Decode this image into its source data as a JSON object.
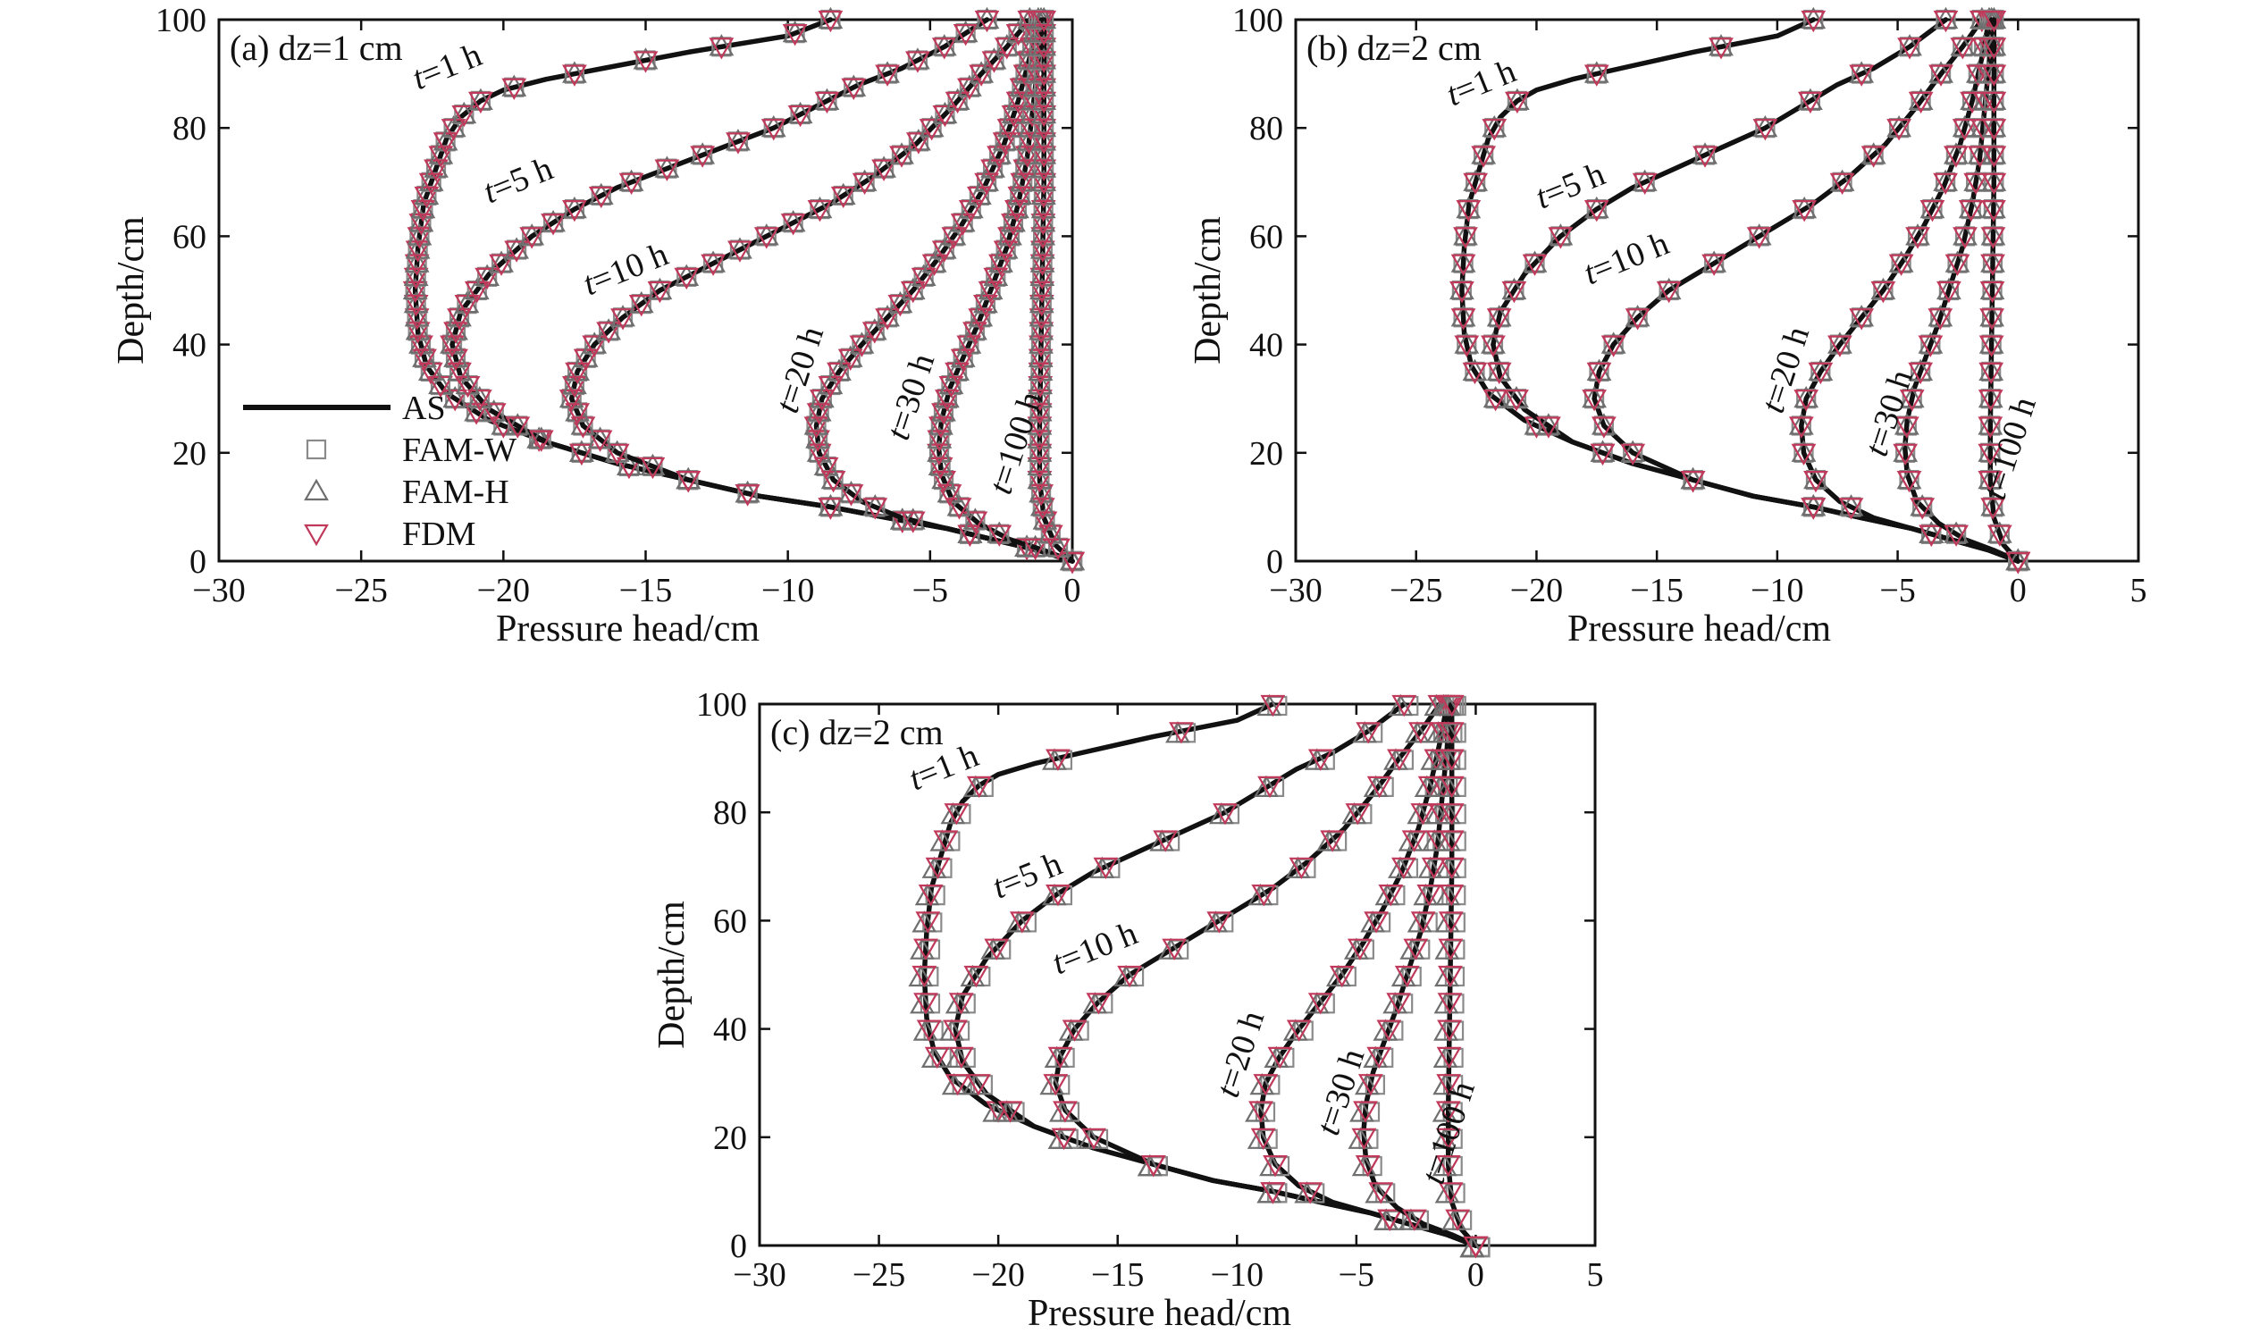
{
  "figure": {
    "legend": {
      "items": [
        {
          "label": "AS",
          "style": "line",
          "color": "#111111"
        },
        {
          "label": "FAM-W",
          "style": "square",
          "color": "#8a8a8a"
        },
        {
          "label": "FAM-H",
          "style": "triangle-up",
          "color": "#6e6e6e"
        },
        {
          "label": "FDM",
          "style": "triangle-down",
          "color": "#c0395a"
        }
      ],
      "placement": "lower-left of panel (a)"
    }
  },
  "chart_data": [
    {
      "type": "line",
      "panel_label": "(a) dz=1 cm",
      "xlabel": "Pressure head/cm",
      "ylabel": "Depth/cm",
      "xlim": [
        -30,
        0
      ],
      "ylim": [
        0,
        100
      ],
      "xticks": [
        "−30",
        "−25",
        "−20",
        "−15",
        "−10",
        "−5",
        "0"
      ],
      "yticks": [
        "0",
        "20",
        "40",
        "60",
        "80",
        "100"
      ],
      "grid": false,
      "series": [
        {
          "name": "t=1 h",
          "label_t": "t",
          "label_rest": "=1 h",
          "label_at": [
            -23,
            87
          ],
          "x": [
            0,
            -1.2,
            -2.8,
            -4.4,
            -6.5,
            -8.5,
            -11,
            -13.5,
            -16,
            -18.5,
            -20.5,
            -22,
            -22.7,
            -23,
            -23.1,
            -23,
            -22.8,
            -22.4,
            -22,
            -21.5,
            -20.8,
            -20,
            -18.5,
            -16.5,
            -13.5,
            -10,
            -8.5
          ],
          "y": [
            0,
            2,
            4,
            6,
            8,
            10,
            12,
            15,
            18,
            22,
            26,
            31,
            36,
            42,
            50,
            58,
            66,
            72,
            78,
            82,
            85,
            87,
            89,
            91,
            94,
            97,
            100
          ]
        },
        {
          "name": "t=5 h",
          "label_t": "t",
          "label_rest": "=5 h",
          "label_at": [
            -20.5,
            66
          ],
          "x": [
            0,
            -1.2,
            -2.8,
            -4.4,
            -6.5,
            -8.5,
            -11,
            -13.5,
            -16,
            -18.5,
            -20.5,
            -21.5,
            -21.8,
            -21.5,
            -20.5,
            -19,
            -17.5,
            -16,
            -14.5,
            -12.5,
            -10.5,
            -9,
            -7.5,
            -6,
            -4.5,
            -3
          ],
          "y": [
            0,
            2,
            4,
            6,
            8,
            10,
            12,
            15,
            18,
            22,
            28,
            34,
            40,
            46,
            53,
            60,
            65,
            69,
            72,
            76,
            80,
            84,
            88,
            91,
            95,
            100
          ]
        },
        {
          "name": "t=10 h",
          "label_t": "t",
          "label_rest": "=10 h",
          "label_at": [
            -17,
            49
          ],
          "x": [
            0,
            -1.2,
            -2.8,
            -4.4,
            -6.5,
            -8.5,
            -11,
            -13.5,
            -16,
            -17.2,
            -17.6,
            -17.4,
            -16.8,
            -15.8,
            -14.5,
            -13,
            -11.5,
            -10,
            -8.5,
            -7,
            -5.5,
            -4.2,
            -3.2,
            -2.3,
            -1.5
          ],
          "y": [
            0,
            2,
            4,
            6,
            8,
            10,
            12,
            15,
            20,
            25,
            30,
            35,
            40,
            45,
            50,
            54,
            58,
            62,
            66,
            71,
            77,
            84,
            90,
            95,
            100
          ]
        },
        {
          "name": "t=20 h",
          "label_t": "t",
          "label_rest": "=20 h",
          "label_at": [
            -9.7,
            27
          ],
          "x": [
            0,
            -1.2,
            -2.8,
            -4.4,
            -6,
            -7.4,
            -8.4,
            -8.9,
            -9,
            -8.8,
            -8.2,
            -7.4,
            -6.5,
            -5.6,
            -4.7,
            -3.9,
            -3.1,
            -2.4,
            -1.9,
            -1.5,
            -1.2
          ],
          "y": [
            0,
            2,
            4,
            6,
            8,
            11,
            15,
            20,
            25,
            30,
            35,
            40,
            45,
            50,
            56,
            62,
            69,
            77,
            85,
            93,
            100
          ]
        },
        {
          "name": "t=30 h",
          "label_t": "t",
          "label_rest": "=30 h",
          "label_at": [
            -5.8,
            22
          ],
          "x": [
            0,
            -1,
            -2.2,
            -3.3,
            -4.2,
            -4.6,
            -4.7,
            -4.6,
            -4.3,
            -3.8,
            -3.3,
            -2.8,
            -2.3,
            -1.9,
            -1.6,
            -1.4,
            -1.2,
            -1.1
          ],
          "y": [
            0,
            2,
            4,
            7,
            11,
            16,
            21,
            26,
            32,
            38,
            44,
            51,
            58,
            66,
            74,
            83,
            92,
            100
          ]
        },
        {
          "name": "t=100 h",
          "label_t": "t",
          "label_rest": "=100 h",
          "label_at": [
            -2.2,
            12
          ],
          "x": [
            0,
            -0.6,
            -1,
            -1.15,
            -1.15,
            -1.1,
            -1.05,
            -1,
            -1,
            -1
          ],
          "y": [
            0,
            3,
            8,
            15,
            25,
            40,
            55,
            70,
            85,
            100
          ]
        }
      ]
    },
    {
      "type": "line",
      "panel_label": "(b) dz=2 cm",
      "xlabel": "Pressure head/cm",
      "ylabel": "Depth/cm",
      "xlim": [
        -30,
        5
      ],
      "ylim": [
        0,
        100
      ],
      "xticks": [
        "−30",
        "−25",
        "−20",
        "−15",
        "−10",
        "−5",
        "0",
        "5"
      ],
      "yticks": [
        "0",
        "20",
        "40",
        "60",
        "80",
        "100"
      ],
      "grid": false,
      "series": [
        {
          "name": "t=1 h",
          "label_t": "t",
          "label_rest": "=1 h",
          "label_at": [
            -23.5,
            84
          ],
          "x": [
            0,
            -1.2,
            -2.8,
            -4.4,
            -6.5,
            -8.5,
            -11,
            -13.5,
            -16,
            -18.5,
            -20.5,
            -22,
            -22.7,
            -23,
            -23.1,
            -23,
            -22.8,
            -22.4,
            -22,
            -21.5,
            -20.8,
            -20,
            -18.5,
            -16.5,
            -13.5,
            -10,
            -8.5
          ],
          "y": [
            0,
            2,
            4,
            6,
            8,
            10,
            12,
            15,
            18,
            22,
            26,
            31,
            36,
            42,
            50,
            58,
            66,
            72,
            78,
            82,
            85,
            87,
            89,
            91,
            94,
            97,
            100
          ]
        },
        {
          "name": "t=5 h",
          "label_t": "t",
          "label_rest": "=5 h",
          "label_at": [
            -19.8,
            65
          ],
          "x": [
            0,
            -1.2,
            -2.8,
            -4.4,
            -6.5,
            -8.5,
            -11,
            -13.5,
            -16,
            -18.5,
            -20.5,
            -21.5,
            -21.8,
            -21.5,
            -20.5,
            -19,
            -17.5,
            -16,
            -14.5,
            -12.5,
            -10.5,
            -9,
            -7.5,
            -6,
            -4.5,
            -3
          ],
          "y": [
            0,
            2,
            4,
            6,
            8,
            10,
            12,
            15,
            18,
            22,
            28,
            34,
            40,
            46,
            53,
            60,
            65,
            69,
            72,
            76,
            80,
            84,
            88,
            91,
            95,
            100
          ]
        },
        {
          "name": "t=10 h",
          "label_t": "t",
          "label_rest": "=10 h",
          "label_at": [
            -17.8,
            51
          ],
          "x": [
            0,
            -1.2,
            -2.8,
            -4.4,
            -6.5,
            -8.5,
            -11,
            -13.5,
            -16,
            -17.2,
            -17.6,
            -17.4,
            -16.8,
            -15.8,
            -14.5,
            -13,
            -11.5,
            -10,
            -8.5,
            -7,
            -5.5,
            -4.2,
            -3.2,
            -2.3,
            -1.5
          ],
          "y": [
            0,
            2,
            4,
            6,
            8,
            10,
            12,
            15,
            20,
            25,
            30,
            35,
            40,
            45,
            50,
            54,
            58,
            62,
            66,
            71,
            77,
            84,
            90,
            95,
            100
          ]
        },
        {
          "name": "t=20 h",
          "label_t": "t",
          "label_rest": "=20 h",
          "label_at": [
            -9.8,
            27
          ],
          "x": [
            0,
            -1.2,
            -2.8,
            -4.4,
            -6,
            -7.4,
            -8.4,
            -8.9,
            -9,
            -8.8,
            -8.2,
            -7.4,
            -6.5,
            -5.6,
            -4.7,
            -3.9,
            -3.1,
            -2.4,
            -1.9,
            -1.5,
            -1.2
          ],
          "y": [
            0,
            2,
            4,
            6,
            8,
            11,
            15,
            20,
            25,
            30,
            35,
            40,
            45,
            50,
            56,
            62,
            69,
            77,
            85,
            93,
            100
          ]
        },
        {
          "name": "t=30 h",
          "label_t": "t",
          "label_rest": "=30 h",
          "label_at": [
            -5.5,
            19
          ],
          "x": [
            0,
            -1,
            -2.2,
            -3.3,
            -4.2,
            -4.6,
            -4.7,
            -4.6,
            -4.3,
            -3.8,
            -3.3,
            -2.8,
            -2.3,
            -1.9,
            -1.6,
            -1.4,
            -1.2,
            -1.1
          ],
          "y": [
            0,
            2,
            4,
            7,
            11,
            16,
            21,
            26,
            32,
            38,
            44,
            51,
            58,
            66,
            74,
            83,
            92,
            100
          ]
        },
        {
          "name": "t=100 h",
          "label_t": "t",
          "label_rest": "=100 h",
          "label_at": [
            -0.6,
            11
          ],
          "x": [
            0,
            -0.6,
            -1,
            -1.15,
            -1.15,
            -1.1,
            -1.05,
            -1,
            -1,
            -1
          ],
          "y": [
            0,
            3,
            8,
            15,
            25,
            40,
            55,
            70,
            85,
            100
          ]
        }
      ]
    },
    {
      "type": "line",
      "panel_label": "(c) dz=2 cm",
      "xlabel": "Pressure head/cm",
      "ylabel": "Depth/cm",
      "xlim": [
        -30,
        5
      ],
      "ylim": [
        0,
        100
      ],
      "xticks": [
        "−30",
        "−25",
        "−20",
        "−15",
        "−10",
        "−5",
        "0",
        "5"
      ],
      "yticks": [
        "0",
        "20",
        "40",
        "60",
        "80",
        "100"
      ],
      "grid": false,
      "series": [
        {
          "name": "t=1 h",
          "label_t": "t",
          "label_rest": "=1 h",
          "label_at": [
            -23.5,
            84
          ],
          "x": [
            0,
            -1.2,
            -2.8,
            -4.4,
            -6.5,
            -8.5,
            -11,
            -13.5,
            -16,
            -18.5,
            -20.5,
            -22,
            -22.7,
            -23,
            -23.1,
            -23,
            -22.8,
            -22.4,
            -22,
            -21.5,
            -20.8,
            -20,
            -18.5,
            -16.5,
            -13.5,
            -10,
            -8.5
          ],
          "y": [
            0,
            2,
            4,
            6,
            8,
            10,
            12,
            15,
            18,
            22,
            26,
            31,
            36,
            42,
            50,
            58,
            66,
            72,
            78,
            82,
            85,
            87,
            89,
            91,
            94,
            97,
            100
          ]
        },
        {
          "name": "t=5 h",
          "label_t": "t",
          "label_rest": "=5 h",
          "label_at": [
            -20,
            64
          ],
          "x": [
            0,
            -1.2,
            -2.8,
            -4.4,
            -6.5,
            -8.5,
            -11,
            -13.5,
            -16,
            -18.5,
            -20.5,
            -21.5,
            -21.8,
            -21.5,
            -20.5,
            -19,
            -17.5,
            -16,
            -14.5,
            -12.5,
            -10.5,
            -9,
            -7.5,
            -6,
            -4.5,
            -3
          ],
          "y": [
            0,
            2,
            4,
            6,
            8,
            10,
            12,
            15,
            18,
            22,
            28,
            34,
            40,
            46,
            53,
            60,
            65,
            69,
            72,
            76,
            80,
            84,
            88,
            91,
            95,
            100
          ]
        },
        {
          "name": "t=10 h",
          "label_t": "t",
          "label_rest": "=10 h",
          "label_at": [
            -17.5,
            50
          ],
          "x": [
            0,
            -1.2,
            -2.8,
            -4.4,
            -6.5,
            -8.5,
            -11,
            -13.5,
            -16,
            -17.2,
            -17.6,
            -17.4,
            -16.8,
            -15.8,
            -14.5,
            -13,
            -11.5,
            -10,
            -8.5,
            -7,
            -5.5,
            -4.2,
            -3.2,
            -2.3,
            -1.5
          ],
          "y": [
            0,
            2,
            4,
            6,
            8,
            10,
            12,
            15,
            20,
            25,
            30,
            35,
            40,
            45,
            50,
            54,
            58,
            62,
            66,
            71,
            77,
            84,
            90,
            95,
            100
          ]
        },
        {
          "name": "t=20 h",
          "label_t": "t",
          "label_rest": "=20 h",
          "label_at": [
            -10,
            27
          ],
          "x": [
            0,
            -1.2,
            -2.8,
            -4.4,
            -6,
            -7.4,
            -8.4,
            -8.9,
            -9,
            -8.8,
            -8.2,
            -7.4,
            -6.5,
            -5.6,
            -4.7,
            -3.9,
            -3.1,
            -2.4,
            -1.9,
            -1.5,
            -1.2
          ],
          "y": [
            0,
            2,
            4,
            6,
            8,
            11,
            15,
            20,
            25,
            30,
            35,
            40,
            45,
            50,
            56,
            62,
            69,
            77,
            85,
            93,
            100
          ]
        },
        {
          "name": "t=30 h",
          "label_t": "t",
          "label_rest": "=30 h",
          "label_at": [
            -5.8,
            20
          ],
          "x": [
            0,
            -1,
            -2.2,
            -3.3,
            -4.2,
            -4.6,
            -4.7,
            -4.6,
            -4.3,
            -3.8,
            -3.3,
            -2.8,
            -2.3,
            -1.9,
            -1.6,
            -1.4,
            -1.2,
            -1.1
          ],
          "y": [
            0,
            2,
            4,
            7,
            11,
            16,
            21,
            26,
            32,
            38,
            44,
            51,
            58,
            66,
            74,
            83,
            92,
            100
          ]
        },
        {
          "name": "t=100 h",
          "label_t": "t",
          "label_rest": "=100 h",
          "label_at": [
            -1.4,
            11
          ],
          "x": [
            0,
            -0.6,
            -1,
            -1.15,
            -1.15,
            -1.1,
            -1.05,
            -1,
            -1,
            -1
          ],
          "y": [
            0,
            3,
            8,
            15,
            25,
            40,
            55,
            70,
            85,
            100
          ]
        }
      ]
    }
  ]
}
